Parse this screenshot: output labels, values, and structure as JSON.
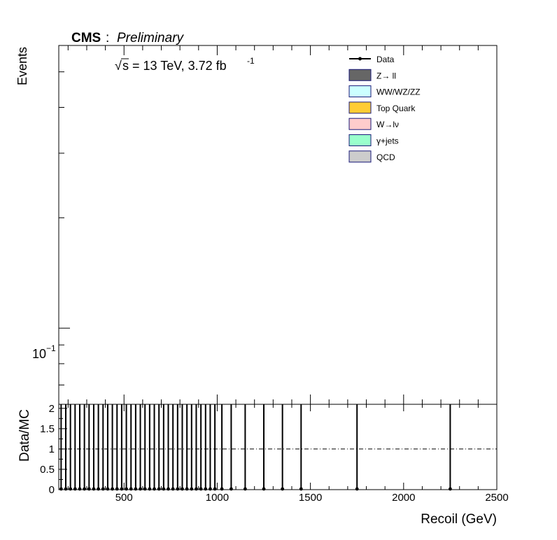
{
  "chart_data": [
    {
      "type": "line",
      "panel": "main",
      "header": {
        "experiment": "CMS",
        "status": "Preliminary"
      },
      "energy_label": "s = 13 TeV, 3.72 fb",
      "energy_sqrt": "√",
      "lumi_exponent": "-1",
      "ylabel": "Events",
      "yscale": "log",
      "ytick_labels": [
        {
          "value": 0.1,
          "base": "10",
          "exp": "−1"
        }
      ],
      "xlim": [
        150,
        2500
      ],
      "legend": {
        "position": "top-right",
        "entries": [
          {
            "label": "Data",
            "style": "marker-line",
            "color": "#000000"
          },
          {
            "label": "Z→ ll",
            "style": "box",
            "fill": "#666666",
            "edge": "#1a1a7a"
          },
          {
            "label": "WW/WZ/ZZ",
            "style": "box",
            "fill": "#ccffff",
            "edge": "#1a1a7a"
          },
          {
            "label": "Top Quark",
            "style": "box",
            "fill": "#ffcc33",
            "edge": "#1a1a7a"
          },
          {
            "label": "W→lν",
            "style": "box",
            "fill": "#ffcccc",
            "edge": "#1a1a7a"
          },
          {
            "label": "γ+jets",
            "style": "box",
            "fill": "#99ffcc",
            "edge": "#1a1a7a"
          },
          {
            "label": "QCD",
            "style": "box",
            "fill": "#cccccc",
            "edge": "#1a1a7a"
          }
        ]
      },
      "series": []
    },
    {
      "type": "scatter",
      "panel": "ratio",
      "ylabel": "Data/MC",
      "xlabel": "Recoil (GeV)",
      "xlim": [
        150,
        2500
      ],
      "ylim": [
        0,
        2.1
      ],
      "x_ticks": [
        500,
        1000,
        1500,
        2000,
        2500
      ],
      "y_ticks": [
        0,
        0.5,
        1,
        1.5,
        2
      ],
      "y_tick_labels": [
        "0",
        "0.5",
        "1",
        "1.5",
        "2"
      ],
      "reference_line": 1,
      "series": [
        {
          "x": [
            162.5,
            187.5,
            212.5,
            237.5,
            262.5,
            287.5,
            312.5,
            337.5,
            362.5,
            387.5,
            412.5,
            437.5,
            462.5,
            487.5,
            512.5,
            537.5,
            562.5,
            587.5,
            612.5,
            637.5,
            662.5,
            687.5,
            712.5,
            737.5,
            762.5,
            787.5,
            812.5,
            837.5,
            862.5,
            887.5,
            912.5,
            937.5,
            962.5,
            987.5,
            1025,
            1075,
            1150,
            1250,
            1350,
            1450,
            1750,
            2250
          ],
          "y": [
            0,
            0,
            0,
            0,
            0,
            0,
            0,
            0,
            0,
            0,
            0,
            0,
            0,
            0,
            0,
            0,
            0,
            0,
            0,
            0,
            0,
            0,
            0,
            0,
            0,
            0,
            0,
            0,
            0,
            0,
            0,
            0,
            0,
            0,
            0,
            0,
            0,
            0,
            0,
            0,
            0,
            0
          ],
          "error_up": 2.1
        }
      ]
    }
  ]
}
